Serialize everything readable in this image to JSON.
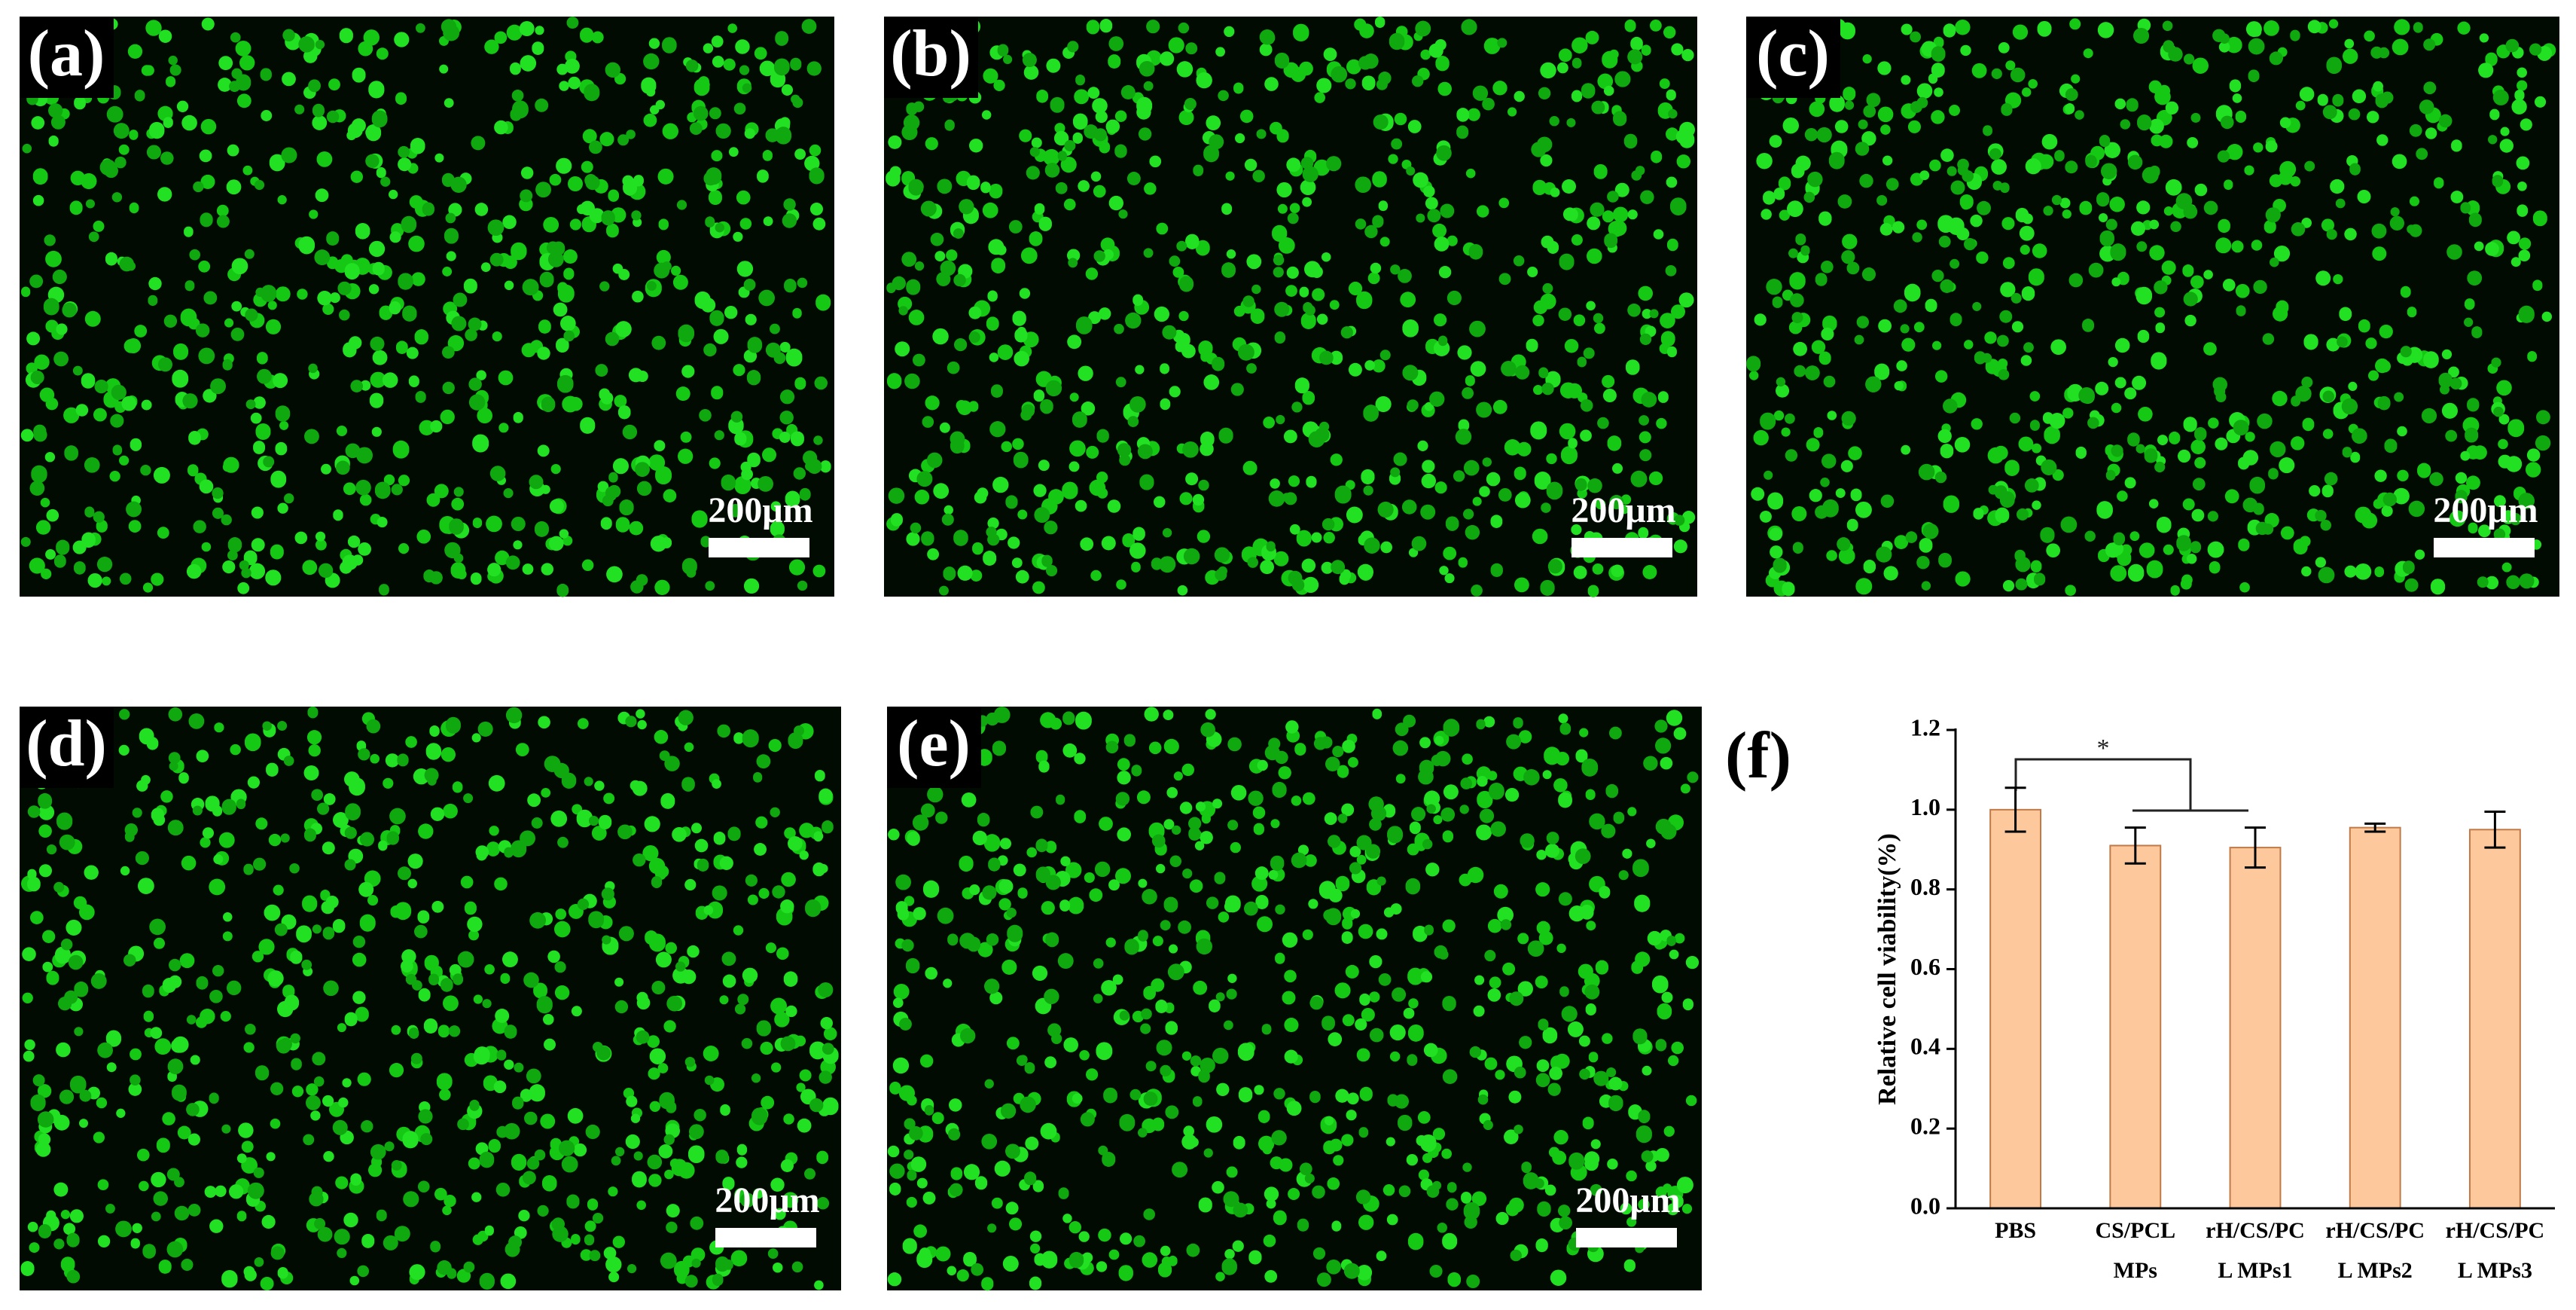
{
  "panels": [
    {
      "label": "(a)",
      "scale_bar": "200μm"
    },
    {
      "label": "(b)",
      "scale_bar": "200μm"
    },
    {
      "label": "(c)",
      "scale_bar": "200μm"
    },
    {
      "label": "(d)",
      "scale_bar": "200μm"
    },
    {
      "label": "(e)",
      "scale_bar": "200μm"
    }
  ],
  "chart_data": {
    "type": "bar",
    "label": "(f)",
    "y_label": "Relative cell viability(%)",
    "categories": [
      [
        "PBS"
      ],
      [
        "CS/PCL",
        "MPs"
      ],
      [
        "rH/CS/PC",
        "L MPs1"
      ],
      [
        "rH/CS/PC",
        "L MPs2"
      ],
      [
        "rH/CS/PC",
        "L MPs3"
      ]
    ],
    "values": [
      1.0,
      0.91,
      0.905,
      0.955,
      0.95
    ],
    "errors": [
      0.055,
      0.045,
      0.05,
      0.01,
      0.045
    ],
    "color": "#fdc99c",
    "ylim": [
      0,
      1.2
    ],
    "yticks": [
      {
        "value": 0,
        "label": "0.0"
      },
      0.2,
      0.4,
      0.6,
      0.8,
      {
        "value": 1,
        "label": "1.0"
      },
      1.2
    ],
    "annotation": "*"
  }
}
